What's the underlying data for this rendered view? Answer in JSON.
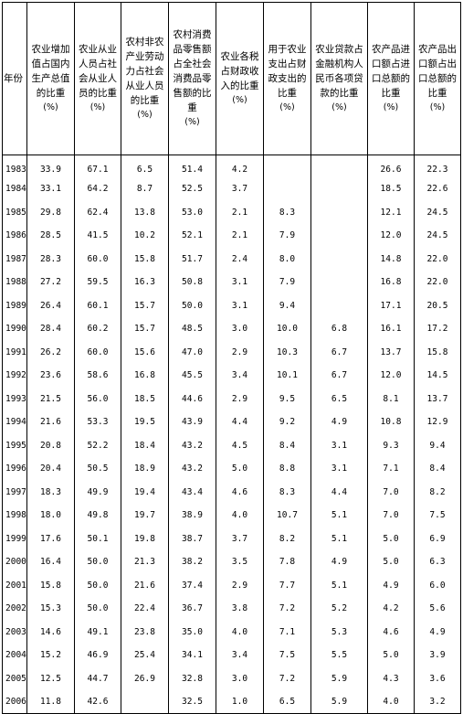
{
  "table": {
    "headers": [
      {
        "label": "年份",
        "unit": ""
      },
      {
        "label": "农业增加值占国内生产总值的比重",
        "unit": "(%)"
      },
      {
        "label": "农业从业人员占社会从业人员的比重",
        "unit": "(%)"
      },
      {
        "label": "农村非农产业劳动力占社会从业人员的比重",
        "unit": "(%)"
      },
      {
        "label": "农村消费品零售额占全社会消费品零售额的比重",
        "unit": "(%)"
      },
      {
        "label": "农业各税占财政收入的比重",
        "unit": "(%)"
      },
      {
        "label": "用于农业支出占财政支出的比重",
        "unit": "(%)"
      },
      {
        "label": "农业贷款占金融机构人民币各项贷款的比重",
        "unit": "(%)"
      },
      {
        "label": "农产品进口额占进口总额的比重",
        "unit": "(%)"
      },
      {
        "label": "农产品出口额占出口总额的比重",
        "unit": "(%)"
      }
    ],
    "rows": [
      [
        "1983",
        "33.9",
        "67.1",
        "6.5",
        "51.4",
        "4.2",
        "",
        "",
        "26.6",
        "22.3"
      ],
      [
        "1984",
        "33.1",
        "64.2",
        "8.7",
        "52.5",
        "3.7",
        "",
        "",
        "18.5",
        "22.6"
      ],
      [
        "1985",
        "29.8",
        "62.4",
        "13.8",
        "53.0",
        "2.1",
        "8.3",
        "",
        "12.1",
        "24.5"
      ],
      [
        "1986",
        "28.5",
        "41.5",
        "10.2",
        "52.1",
        "2.1",
        "7.9",
        "",
        "12.0",
        "24.5"
      ],
      [
        "1987",
        "28.3",
        "60.0",
        "15.8",
        "51.7",
        "2.4",
        "8.0",
        "",
        "14.8",
        "22.0"
      ],
      [
        "1988",
        "27.2",
        "59.5",
        "16.3",
        "50.8",
        "3.1",
        "7.9",
        "",
        "16.8",
        "22.0"
      ],
      [
        "1989",
        "26.4",
        "60.1",
        "15.7",
        "50.0",
        "3.1",
        "9.4",
        "",
        "17.1",
        "20.5"
      ],
      [
        "1990",
        "28.4",
        "60.2",
        "15.7",
        "48.5",
        "3.0",
        "10.0",
        "6.8",
        "16.1",
        "17.2"
      ],
      [
        "1991",
        "26.2",
        "60.0",
        "15.6",
        "47.0",
        "2.9",
        "10.3",
        "6.7",
        "13.7",
        "15.8"
      ],
      [
        "1992",
        "23.6",
        "58.6",
        "16.8",
        "45.5",
        "3.4",
        "10.1",
        "6.7",
        "12.0",
        "14.5"
      ],
      [
        "1993",
        "21.5",
        "56.0",
        "18.5",
        "44.6",
        "2.9",
        "9.5",
        "6.5",
        "8.1",
        "13.7"
      ],
      [
        "1994",
        "21.6",
        "53.3",
        "19.5",
        "43.9",
        "4.4",
        "9.2",
        "4.9",
        "10.8",
        "12.9"
      ],
      [
        "1995",
        "20.8",
        "52.2",
        "18.4",
        "43.2",
        "4.5",
        "8.4",
        "3.1",
        "9.3",
        "9.4"
      ],
      [
        "1996",
        "20.4",
        "50.5",
        "18.9",
        "43.2",
        "5.0",
        "8.8",
        "3.1",
        "7.1",
        "8.4"
      ],
      [
        "1997",
        "18.3",
        "49.9",
        "19.4",
        "43.4",
        "4.6",
        "8.3",
        "4.4",
        "7.0",
        "8.2"
      ],
      [
        "1998",
        "18.0",
        "49.8",
        "19.7",
        "38.9",
        "4.0",
        "10.7",
        "5.1",
        "7.0",
        "7.5"
      ],
      [
        "1999",
        "17.6",
        "50.1",
        "19.8",
        "38.7",
        "3.7",
        "8.2",
        "5.1",
        "5.0",
        "6.9"
      ],
      [
        "2000",
        "16.4",
        "50.0",
        "21.3",
        "38.2",
        "3.5",
        "7.8",
        "4.9",
        "5.0",
        "6.3"
      ],
      [
        "2001",
        "15.8",
        "50.0",
        "21.6",
        "37.4",
        "2.9",
        "7.7",
        "5.1",
        "4.9",
        "6.0"
      ],
      [
        "2002",
        "15.3",
        "50.0",
        "22.4",
        "36.7",
        "3.8",
        "7.2",
        "5.2",
        "4.2",
        "5.6"
      ],
      [
        "2003",
        "14.6",
        "49.1",
        "23.8",
        "35.0",
        "4.0",
        "7.1",
        "5.3",
        "4.6",
        "4.9"
      ],
      [
        "2004",
        "15.2",
        "46.9",
        "25.4",
        "34.1",
        "3.4",
        "7.5",
        "5.5",
        "5.0",
        "3.9"
      ],
      [
        "2005",
        "12.5",
        "44.7",
        "26.9",
        "32.8",
        "3.0",
        "7.2",
        "5.9",
        "4.3",
        "3.6"
      ],
      [
        "2006",
        "11.8",
        "42.6",
        "",
        "32.5",
        "1.0",
        "6.5",
        "5.9",
        "4.0",
        "3.2"
      ]
    ]
  }
}
